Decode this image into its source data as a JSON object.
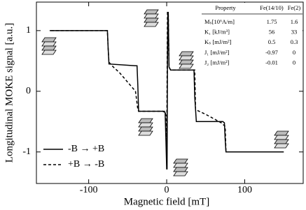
{
  "chart_data": {
    "type": "line",
    "xlabel": "Magnetic field [mT]",
    "ylabel": "Longitudinal MOKE signal [a.u.]",
    "xlim": [
      -167,
      175
    ],
    "ylim": [
      -1.52,
      1.47
    ],
    "xticks": [
      -100,
      0,
      100
    ],
    "yticks": [
      -1,
      0,
      1
    ],
    "legend": "lower left",
    "series": [
      {
        "name": "-B → +B",
        "color": "#000000",
        "linestyle": "solid",
        "x": [
          -150,
          -76,
          -75,
          -74,
          -40,
          -38,
          -37,
          -36,
          -5,
          -2,
          -1,
          0,
          0.5,
          1,
          1.5,
          2,
          3,
          5,
          33,
          35,
          36,
          38,
          72,
          74,
          75,
          76,
          150
        ],
        "values": [
          1.0,
          1.0,
          0.7,
          0.45,
          0.42,
          0.42,
          0.1,
          -0.33,
          -0.33,
          -0.35,
          -0.8,
          -1.28,
          -1.28,
          0.5,
          1.3,
          1.3,
          0.4,
          0.35,
          0.35,
          0.35,
          -0.1,
          -0.5,
          -0.5,
          -0.52,
          -0.8,
          -1.0,
          -1.0
        ]
      },
      {
        "name": "+B → -B",
        "color": "#000000",
        "linestyle": "dashed",
        "x": [
          150,
          76,
          75,
          70,
          60,
          50,
          40,
          37,
          36,
          33,
          5,
          3,
          2,
          1,
          0,
          -1,
          -2,
          -5,
          -36,
          -37,
          -40,
          -50,
          -60,
          -70,
          -74,
          -75,
          -76,
          -150
        ],
        "values": [
          -1.0,
          -1.0,
          -0.58,
          -0.52,
          -0.45,
          -0.38,
          -0.32,
          -0.3,
          0.35,
          0.35,
          0.35,
          0.4,
          1.3,
          1.3,
          -1.0,
          -0.4,
          -0.33,
          -0.33,
          -0.33,
          -0.3,
          0.0,
          0.15,
          0.3,
          0.42,
          0.48,
          0.7,
          1.0,
          1.0
        ]
      }
    ],
    "inset_table": {
      "header": [
        "Property",
        "Fe(14/10)",
        "Fe(2)"
      ],
      "rows": [
        [
          "Mₛ[10⁶A/m]",
          1.75,
          1.6
        ],
        [
          "K₁ [kJ/m³]",
          56,
          33
        ],
        [
          "Kₛ [mJ/m²]",
          0.5,
          0.3
        ],
        [
          "J₁ [mJ/m²]",
          -0.97,
          0
        ],
        [
          "J₂ [mJ/m²]",
          -0.01,
          0
        ]
      ]
    }
  }
}
